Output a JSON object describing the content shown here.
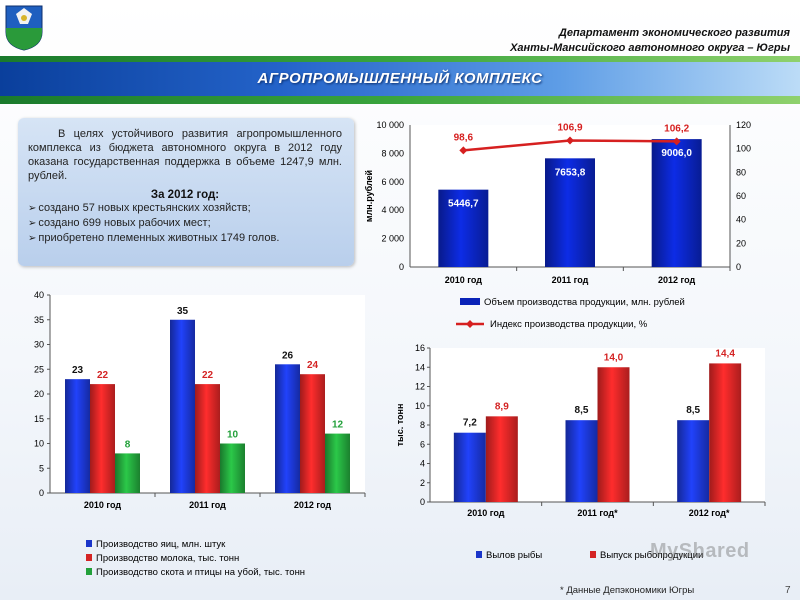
{
  "header": {
    "dept_line1": "Департамент экономического развития",
    "dept_line2": "Ханты-Мансийского автономного округа – Югры"
  },
  "section_title": "АГРОПРОМЫШЛЕННЫЙ КОМПЛЕКС",
  "info": {
    "paragraph": "В целях устойчивого развития агропромышленного комплекса из бюджета автономного округа в 2012 году оказана государственная поддержка в объеме 1247,9 млн. рублей.",
    "subheading": "За 2012 год:",
    "bullets": [
      "создано 57 новых крестьянских хозяйств;",
      "создано 699 новых рабочих мест;",
      "приобретено племенных животных 1749 голов."
    ]
  },
  "chart_data": [
    {
      "type": "bar",
      "id": "production_volume",
      "categories": [
        "2010 год",
        "2011 год",
        "2012 год"
      ],
      "ylabel": "млн.рублей",
      "ylim": [
        0,
        10000
      ],
      "yticks": [
        "0",
        "2 000",
        "4 000",
        "6 000",
        "8 000",
        "10 000"
      ],
      "y2lim": [
        0,
        120
      ],
      "y2ticks": [
        "0",
        "20",
        "40",
        "60",
        "80",
        "100",
        "120"
      ],
      "series": [
        {
          "name": "Объем производства продукции, млн. рублей",
          "kind": "bar",
          "color": "#0a23b8",
          "values": [
            5446.7,
            7653.8,
            9006.0
          ],
          "labels": [
            "5446,7",
            "7653,8",
            "9006,0"
          ]
        },
        {
          "name": "Индекс производства продукции, %",
          "kind": "line",
          "axis": "right",
          "color": "#d62020",
          "values": [
            98.6,
            106.9,
            106.2
          ],
          "labels": [
            "98,6",
            "106,9",
            "106,2"
          ]
        }
      ],
      "legend": "bottom"
    },
    {
      "type": "bar",
      "id": "livestock",
      "categories": [
        "2010 год",
        "2011 год",
        "2012 год"
      ],
      "ylim": [
        0,
        40
      ],
      "yticks": [
        "0",
        "5",
        "10",
        "15",
        "20",
        "25",
        "30",
        "35",
        "40"
      ],
      "series": [
        {
          "name": "Производство яиц, млн. штук",
          "color": "#1a35c9",
          "values": [
            23,
            35,
            26
          ]
        },
        {
          "name": "Производство молока, тыс. тонн",
          "color": "#d42424",
          "values": [
            22,
            22,
            24
          ]
        },
        {
          "name": "Производство скота и птицы на убой, тыс. тонн",
          "color": "#22a03a",
          "values": [
            8,
            10,
            12
          ]
        }
      ],
      "legend": "bottom"
    },
    {
      "type": "bar",
      "id": "fish",
      "categories": [
        "2010 год",
        "2011 год*",
        "2012 год*"
      ],
      "ylabel": "тыс. тонн",
      "ylim": [
        0,
        16
      ],
      "yticks": [
        "0",
        "2",
        "4",
        "6",
        "8",
        "10",
        "12",
        "14",
        "16"
      ],
      "series": [
        {
          "name": "Вылов рыбы",
          "color": "#1a35c9",
          "values": [
            7.2,
            8.5,
            8.5
          ],
          "labels": [
            "7,2",
            "8,5",
            "8,5"
          ]
        },
        {
          "name": "Выпуск рыбопродукции",
          "color": "#d42424",
          "values": [
            8.9,
            14.0,
            14.4
          ],
          "labels": [
            "8,9",
            "14,0",
            "14,4"
          ]
        }
      ],
      "legend": "bottom"
    }
  ],
  "footnote": "* Данные Депэкономики Югры",
  "page_number": "7",
  "watermark": "MyShared"
}
